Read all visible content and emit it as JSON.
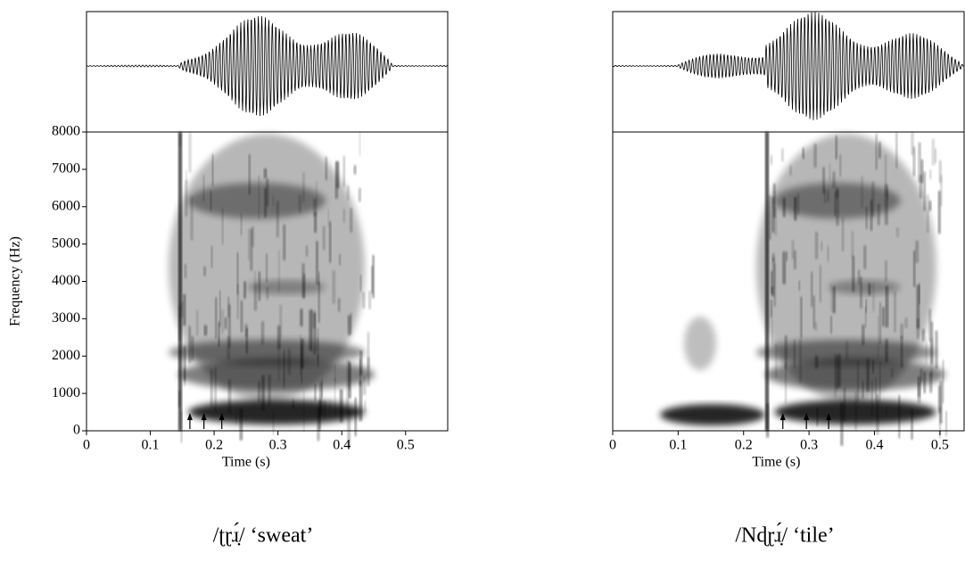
{
  "chart_data": [
    {
      "type": "spectrogram",
      "xlabel": "Time (s)",
      "ylabel": "Frequency (Hz)",
      "caption": "/ʈɽɹ̣́/ ‘sweat’",
      "xlim": [
        0,
        0.566
      ],
      "xticks": [
        0,
        0.1,
        0.2,
        0.3,
        0.4,
        0.5
      ],
      "ylim": [
        0,
        8000
      ],
      "yticks": [
        0,
        1000,
        2000,
        3000,
        4000,
        5000,
        6000,
        7000,
        8000
      ],
      "arrows": [
        0.162,
        0.184,
        0.212
      ]
    },
    {
      "type": "spectrogram",
      "xlabel": "Time (s)",
      "caption": "/Nɖɽɹ̣́/ ‘tile’",
      "xlim": [
        0,
        0.537
      ],
      "xticks": [
        0,
        0.1,
        0.2,
        0.3,
        0.4,
        0.5
      ],
      "ylim": [
        0,
        8000
      ],
      "arrows": [
        0.26,
        0.296,
        0.33
      ]
    }
  ]
}
